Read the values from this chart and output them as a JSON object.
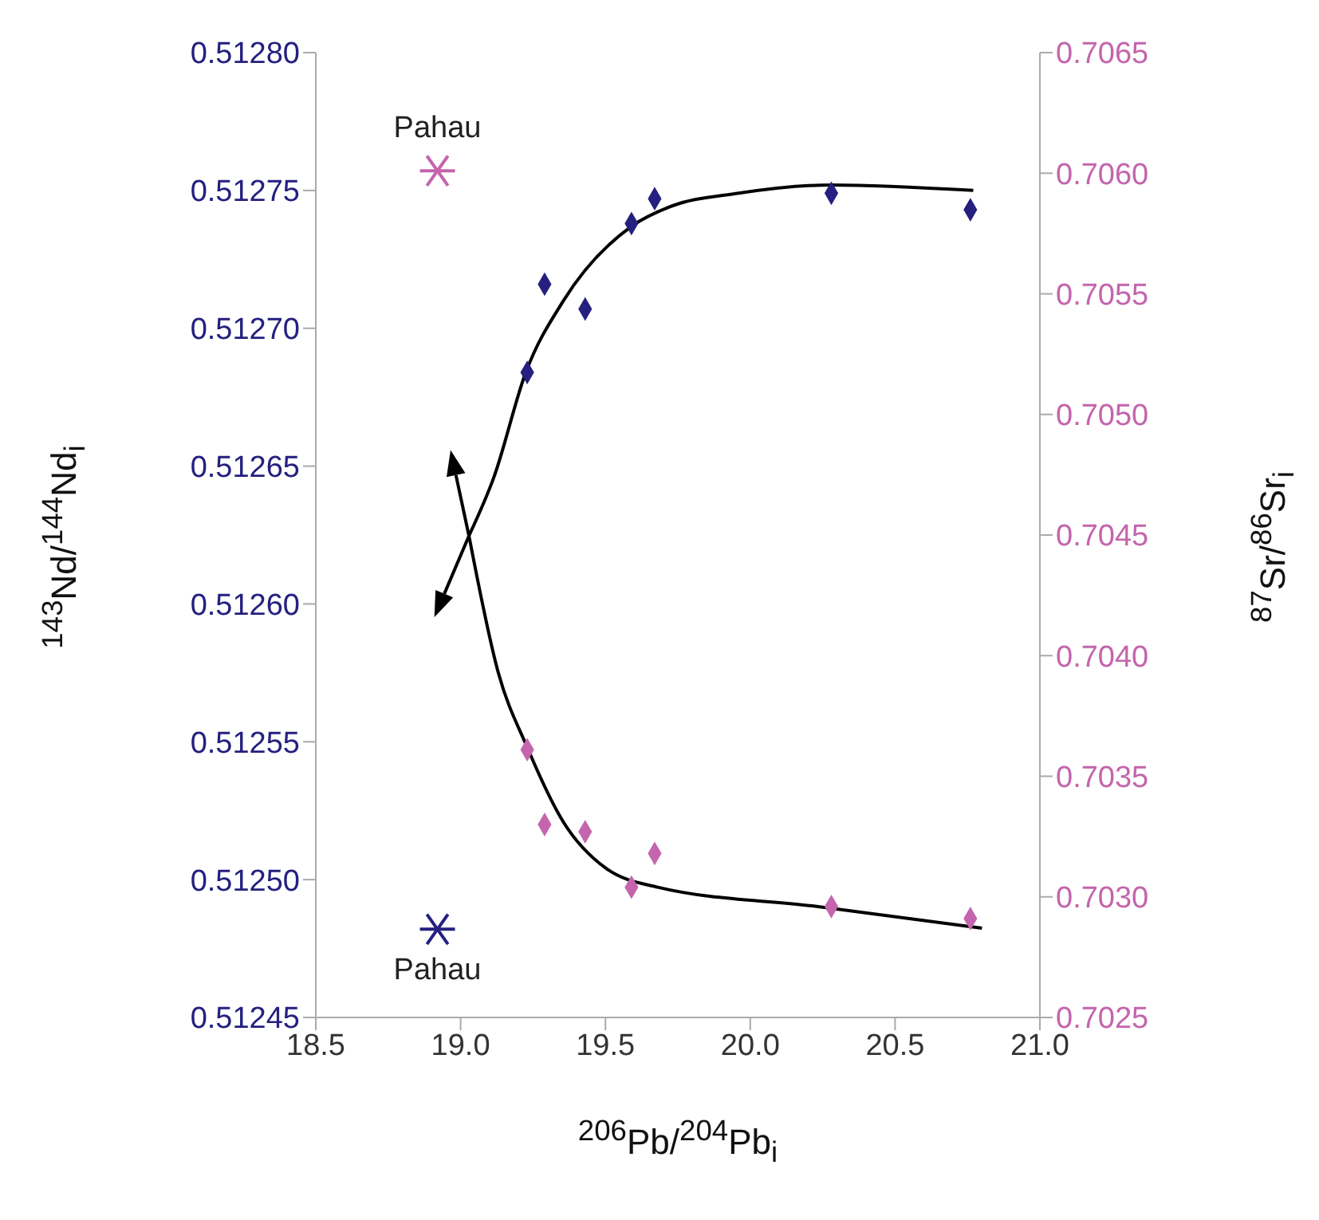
{
  "chart_data": {
    "type": "scatter",
    "xlabel": "$^{206}$Pb/$^{204}$Pb$_{i}$",
    "ylabel": "$^{143}$Nd/$^{144}$Nd$_{i}$",
    "y2label": "$^{87}$Sr/$^{86}$Sr$_{i}$",
    "xlim": [
      18.5,
      21.0
    ],
    "xticks": [
      {
        "value": 18.5,
        "label": "18.5"
      },
      {
        "value": 19,
        "label": "19.0"
      },
      {
        "value": 19.5,
        "label": "19.5"
      },
      {
        "value": 20,
        "label": "20.0"
      },
      {
        "value": 20.5,
        "label": "20.5"
      },
      {
        "value": 21,
        "label": "21.0"
      }
    ],
    "ylim": [
      0.51245,
      0.5128
    ],
    "yticks": [
      {
        "value": 0.51245,
        "label": "0.51245"
      },
      {
        "value": 0.5125,
        "label": "0.51250"
      },
      {
        "value": 0.51255,
        "label": "0.51255"
      },
      {
        "value": 0.5126,
        "label": "0.51260"
      },
      {
        "value": 0.51265,
        "label": "0.51265"
      },
      {
        "value": 0.5127,
        "label": "0.51270"
      },
      {
        "value": 0.51275,
        "label": "0.51275"
      },
      {
        "value": 0.5128,
        "label": "0.51280"
      }
    ],
    "y2lim": [
      0.7025,
      0.7065
    ],
    "y2ticks": [
      {
        "value": 0.7025,
        "label": "0.7025"
      },
      {
        "value": 0.703,
        "label": "0.7030"
      },
      {
        "value": 0.7035,
        "label": "0.7035"
      },
      {
        "value": 0.704,
        "label": "0.7040"
      },
      {
        "value": 0.7045,
        "label": "0.7045"
      },
      {
        "value": 0.705,
        "label": "0.7050"
      },
      {
        "value": 0.7055,
        "label": "0.7055"
      },
      {
        "value": 0.706,
        "label": "0.7060"
      },
      {
        "value": 0.7065,
        "label": "0.7065"
      }
    ],
    "grid": false,
    "series": [
      {
        "color": "#25207f",
        "marker": "diamond",
        "x": [
          19.23,
          19.29,
          19.43,
          19.59,
          19.67,
          20.28,
          20.76
        ],
        "values": [
          0.512684,
          0.512716,
          0.512707,
          0.512738,
          0.512747,
          0.512749,
          0.512743
        ]
      },
      {
        "color": "#c465ad",
        "marker": "diamond",
        "axis": "y2",
        "x": [
          19.23,
          19.29,
          19.43,
          19.59,
          19.67,
          20.28,
          20.76
        ],
        "values": [
          0.70361,
          0.7033,
          0.70327,
          0.70304,
          0.70318,
          0.70296,
          0.70291
        ]
      },
      {
        "color": "#25207f",
        "marker": "cross",
        "x": [
          18.92
        ],
        "values": [
          0.512482
        ]
      },
      {
        "color": "#c465ad",
        "marker": "cross",
        "axis": "y2",
        "x": [
          18.92
        ],
        "values": [
          0.70601
        ]
      },
      {
        "type": "line",
        "color": "#000000",
        "x": [
          19.03,
          19.115,
          19.225,
          19.355,
          19.59,
          19.72,
          19.96,
          20.28,
          20.77
        ],
        "values": [
          0.512625,
          0.512646,
          0.512684,
          0.51271,
          0.512737,
          0.512744,
          0.512749,
          0.512752,
          0.51275
        ]
      },
      {
        "type": "line",
        "color": "#000000",
        "axis": "y2",
        "x": [
          19.03,
          19.13,
          19.23,
          19.355,
          19.5,
          19.68,
          20.23,
          20.8
        ],
        "values": [
          0.70449,
          0.70393,
          0.70362,
          0.70331,
          0.70312,
          0.70304,
          0.70296,
          0.70287
        ]
      }
    ],
    "annotations": [
      {
        "text": "Pahau",
        "x": 18.92,
        "y": 0.512759
      },
      {
        "text": "Pahau",
        "x": 18.92,
        "y": 0.512482
      }
    ]
  }
}
